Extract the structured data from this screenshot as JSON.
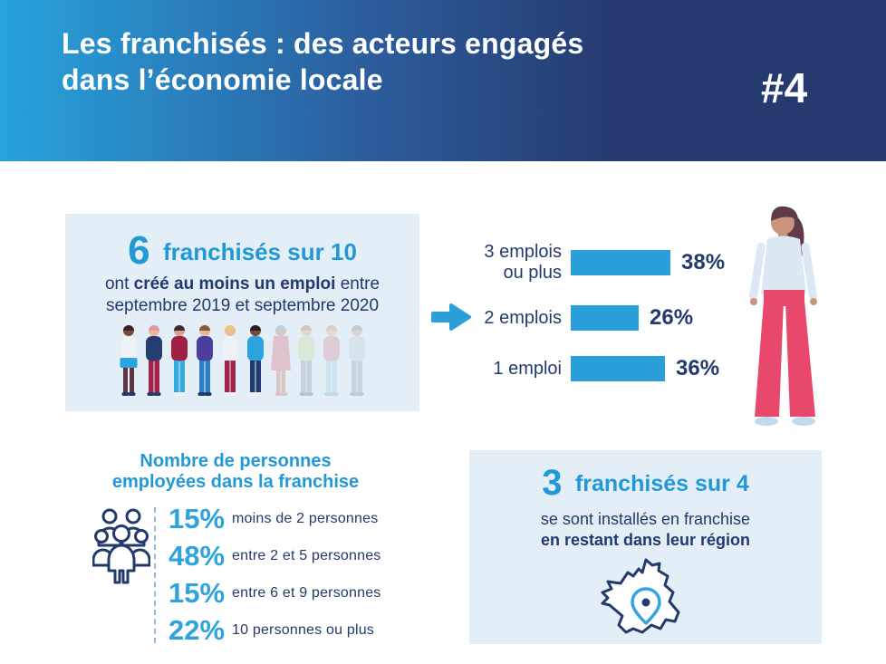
{
  "header": {
    "title_line1": "Les franchisés : des acteurs engagés",
    "title_line2": "dans l’économie locale",
    "badge": "#4"
  },
  "colors": {
    "accent_blue": "#2299d6",
    "bar_blue": "#2b9fd9",
    "navy_text": "#223a6d",
    "box_background": "#e3eef7",
    "header_gradient_start": "#27a3dd",
    "header_gradient_end": "#253a6e"
  },
  "jobs_box": {
    "number": "6",
    "title": "franchisés sur 10",
    "line2_pre": "ont ",
    "line2_bold": "créé au moins un emploi",
    "line2_post": " entre",
    "line3": "septembre 2019 et septembre 2020"
  },
  "chart_data": [
    {
      "type": "bar",
      "orientation": "horizontal",
      "title": "",
      "categories": [
        "3 emplois ou plus",
        "2 emplois",
        "1 emploi"
      ],
      "values": [
        38,
        26,
        36
      ],
      "unit": "%",
      "xlim": [
        0,
        40
      ],
      "grid": false,
      "rows": [
        {
          "label": "3 emplois\nou plus",
          "value_label": "38%"
        },
        {
          "label": "2 emplois",
          "value_label": "26%"
        },
        {
          "label": "1 emploi",
          "value_label": "36%"
        }
      ]
    },
    {
      "type": "table",
      "title_line1": "Nombre de personnes",
      "title_line2": "employées dans la franchise",
      "categories": [
        "moins de 2 personnes",
        "entre 2 et 5 personnes",
        "entre 6 et 9 personnes",
        "10 personnes ou plus"
      ],
      "values": [
        15,
        48,
        15,
        22
      ],
      "unit": "%",
      "rows": [
        {
          "pct": "15%",
          "label": "moins de 2 personnes"
        },
        {
          "pct": "48%",
          "label": "entre 2 et 5 personnes"
        },
        {
          "pct": "15%",
          "label": "entre 6 et 9 personnes"
        },
        {
          "pct": "22%",
          "label": "10 personnes ou plus"
        }
      ]
    }
  ],
  "region_box": {
    "number": "3",
    "title": "franchisés sur 4",
    "line2": "se sont installés en franchise",
    "line3": "en restant dans leur région"
  },
  "icons": {
    "arrow": "arrow-right-icon",
    "people_group": "people-group-icon",
    "france_map": "france-map-icon",
    "location_pin": "location-pin-icon"
  }
}
